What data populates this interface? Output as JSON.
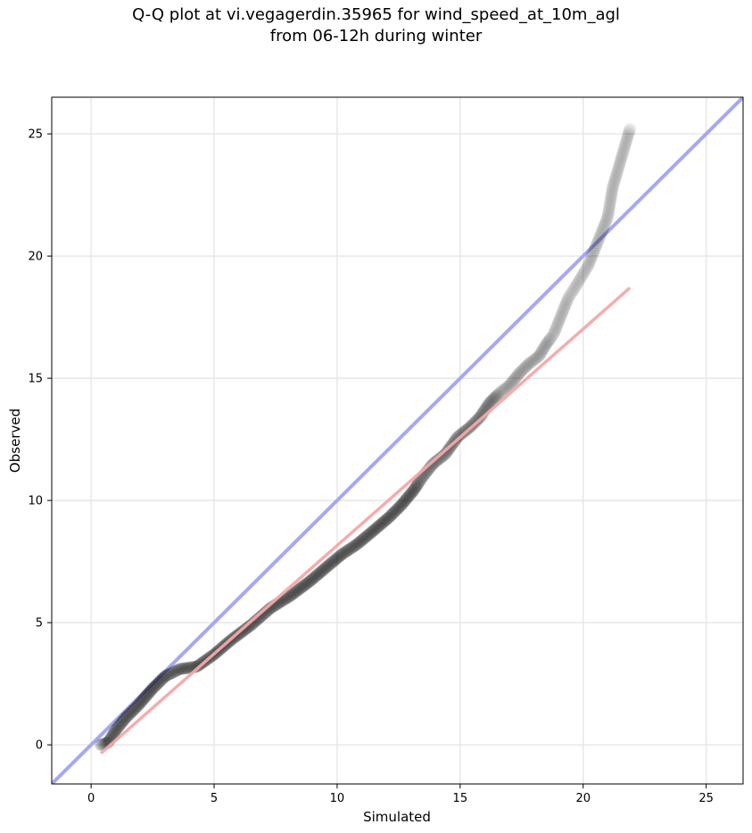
{
  "chart_data": {
    "type": "scatter",
    "title_line1": "Q-Q plot at vi.vegagerdin.35965 for wind_speed_at_10m_agl",
    "title_line2": "from 06-12h during winter",
    "xlabel": "Simulated",
    "ylabel": "Observed",
    "xlim": [
      -1.6,
      26.5
    ],
    "ylim": [
      -1.6,
      26.5
    ],
    "xticks": [
      0,
      5,
      10,
      15,
      20,
      25
    ],
    "yticks": [
      0,
      5,
      10,
      15,
      20,
      25
    ],
    "grid": true,
    "colors": {
      "points": "#000000",
      "identity_line": "#a6a8f2",
      "fit_line": "#f5a8a8"
    },
    "identity_line": {
      "x": [
        -1.6,
        26.5
      ],
      "y": [
        -1.6,
        26.5
      ]
    },
    "fit_line": {
      "x": [
        0.4,
        21.9
      ],
      "y": [
        -0.35,
        18.7
      ]
    },
    "quantiles": {
      "x": [
        0.4,
        0.7,
        1.0,
        1.4,
        1.9,
        2.5,
        3.0,
        3.6,
        4.3,
        5.0,
        5.7,
        6.5,
        7.3,
        8.1,
        8.9,
        9.6,
        10.2,
        10.8,
        11.4,
        12.1,
        12.6,
        13.1,
        13.5,
        13.9,
        14.4,
        14.9,
        15.4,
        15.8,
        16.2,
        16.6,
        17.0,
        17.4,
        17.8,
        18.2,
        18.5,
        18.8,
        19.0,
        19.2,
        19.4,
        19.6,
        19.9,
        20.2,
        20.4,
        20.6,
        20.8,
        21.0,
        21.2,
        21.9
      ],
      "y": [
        0.0,
        0.1,
        0.6,
        1.1,
        1.6,
        2.3,
        2.8,
        3.1,
        3.2,
        3.7,
        4.3,
        4.9,
        5.6,
        6.1,
        6.7,
        7.3,
        7.8,
        8.2,
        8.7,
        9.3,
        9.8,
        10.4,
        11.0,
        11.5,
        11.9,
        12.6,
        13.0,
        13.4,
        14.0,
        14.4,
        14.7,
        15.2,
        15.6,
        15.9,
        16.4,
        16.8,
        17.3,
        17.8,
        18.3,
        18.6,
        19.1,
        19.6,
        20.1,
        20.6,
        21.1,
        21.6,
        22.8,
        25.2
      ]
    }
  }
}
